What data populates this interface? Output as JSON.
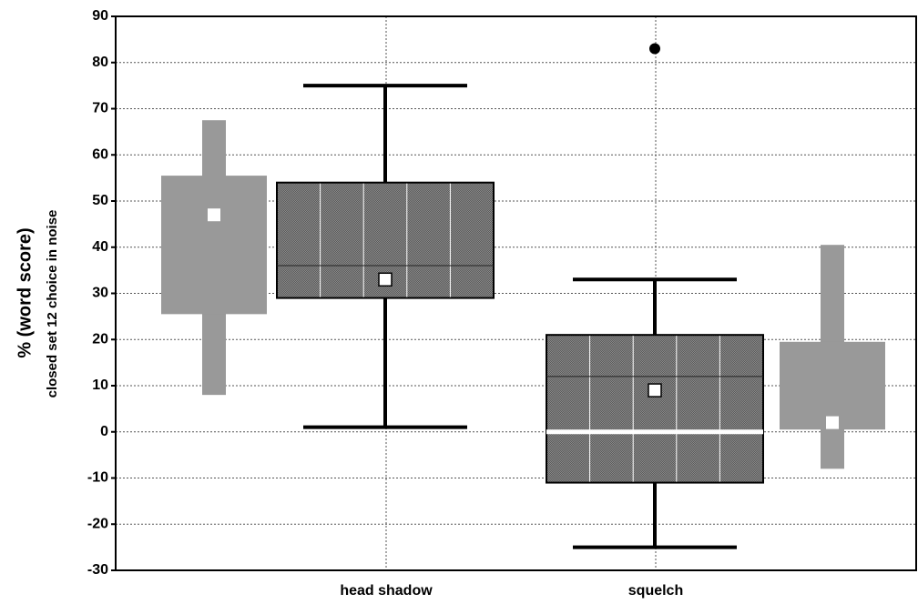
{
  "chart_data": {
    "type": "box",
    "categories": [
      "head shadow",
      "squelch"
    ],
    "ylabel": "% (word score)",
    "ylabel2": "closed set 12 choice in noise",
    "ylim": [
      -30,
      90
    ],
    "yticks": [
      -30,
      -20,
      -10,
      0,
      10,
      20,
      30,
      40,
      50,
      60,
      70,
      80,
      90
    ],
    "grid": true,
    "series": [
      {
        "color": "#999999",
        "values": [
          {
            "low": 8,
            "q1": 25.5,
            "q3": 55.5,
            "high": 67.5,
            "mean": 47
          },
          {
            "low": -8,
            "q1": 0.5,
            "q3": 19.5,
            "high": 40.5,
            "mean": 2
          }
        ]
      },
      {
        "color": "#808080",
        "values": [
          {
            "low": 1,
            "q1": 29,
            "median": 36,
            "q3": 54,
            "high": 75,
            "mean": 33
          },
          {
            "low": -25,
            "q1": -11,
            "median": 12,
            "q3": 21,
            "high": 33,
            "mean": 9,
            "outliers": [
              83
            ]
          }
        ]
      }
    ]
  }
}
